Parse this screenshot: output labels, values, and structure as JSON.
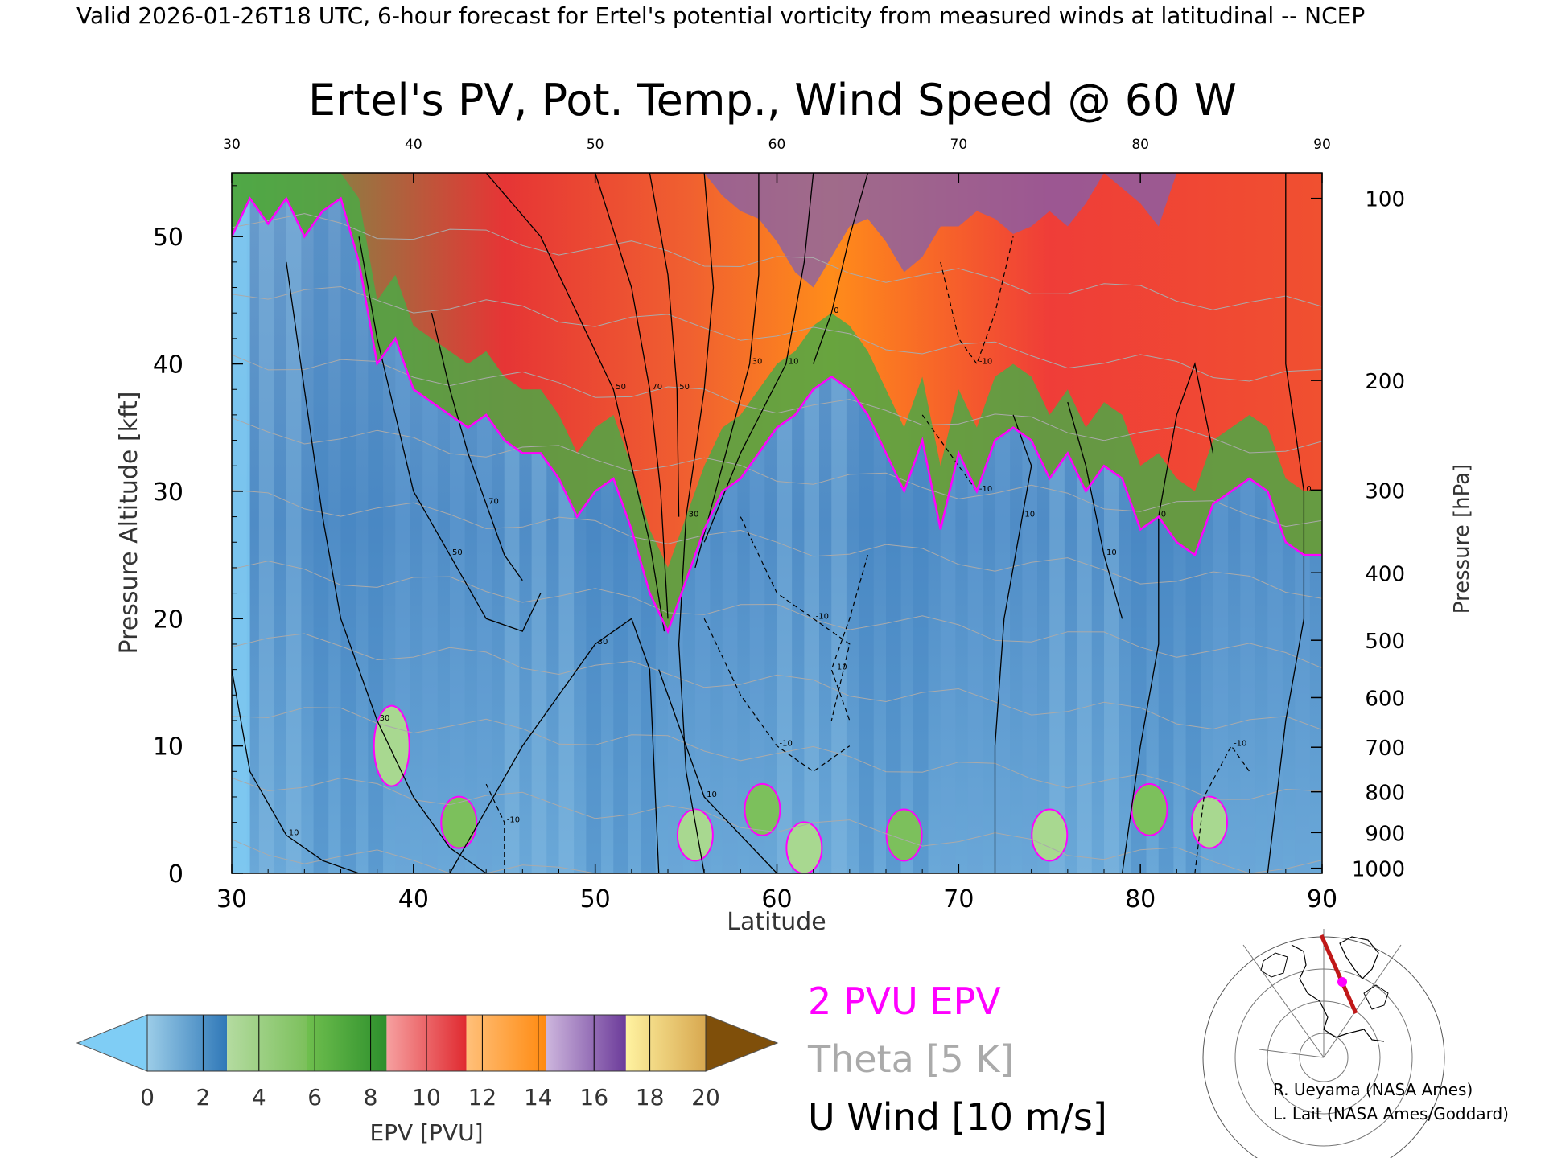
{
  "header": {
    "banner": "Valid 2026-01-26T18 UTC, 6-hour forecast for Ertel's potential vorticity from measured winds at latitudinal -- NCEP",
    "title": "Ertel's PV, Pot. Temp., Wind Speed @ 60 W"
  },
  "legend": {
    "epv_label": "2 PVU EPV",
    "epv_color": "#ff00ff",
    "theta_label": "Theta [5 K]",
    "theta_color": "#aaaaaa",
    "wind_label": "U Wind [10 m/s]",
    "wind_color": "#000000"
  },
  "colorbar": {
    "label": "EPV [PVU]",
    "ticks": [
      "0",
      "2",
      "4",
      "6",
      "8",
      "10",
      "12",
      "14",
      "16",
      "18",
      "20"
    ],
    "under_color": "#7fcdf5",
    "over_color": "#7f4f0a",
    "bins": [
      [
        "#9ccde8",
        "#2f78b8"
      ],
      [
        "#b4dba0",
        "#7cc05c"
      ],
      [
        "#6fbf4e",
        "#2d8f2c"
      ],
      [
        "#f6a0a0",
        "#e02a30"
      ],
      [
        "#ffc07a",
        "#ff8a10"
      ],
      [
        "#cdb6dd",
        "#6c3b9a"
      ],
      [
        "#fff2a0",
        "#d8a850"
      ]
    ]
  },
  "credits": [
    "R. Ueyama (NASA Ames)",
    "L. Lait (NASA Ames/Goddard)"
  ],
  "chart_data": {
    "type": "heatmap",
    "title": "Ertel's PV, Pot. Temp., Wind Speed @ 60 W",
    "xlabel": "Latitude",
    "ylabel": "Pressure Altitude [kft]",
    "y2label": "Pressure [hPa]",
    "xlim": [
      30,
      90
    ],
    "ylim": [
      0,
      55
    ],
    "x_ticks": [
      "30",
      "40",
      "50",
      "60",
      "70",
      "80",
      "90"
    ],
    "y_ticks": [
      "0",
      "10",
      "20",
      "30",
      "40",
      "50"
    ],
    "pressure_ticks": [
      {
        "label": "100",
        "kft": 53.0
      },
      {
        "label": "200",
        "kft": 38.7
      },
      {
        "label": "300",
        "kft": 30.1
      },
      {
        "label": "400",
        "kft": 23.6
      },
      {
        "label": "500",
        "kft": 18.3
      },
      {
        "label": "600",
        "kft": 13.8
      },
      {
        "label": "700",
        "kft": 9.9
      },
      {
        "label": "800",
        "kft": 6.4
      },
      {
        "label": "900",
        "kft": 3.2
      },
      {
        "label": "1000",
        "kft": 0.4
      }
    ],
    "tropopause_2pvu": [
      [
        30,
        50
      ],
      [
        31,
        53
      ],
      [
        32,
        51
      ],
      [
        33,
        53
      ],
      [
        34,
        50
      ],
      [
        35,
        52
      ],
      [
        36,
        53
      ],
      [
        37,
        48
      ],
      [
        38,
        40
      ],
      [
        39,
        42
      ],
      [
        40,
        38
      ],
      [
        41,
        37
      ],
      [
        42,
        36
      ],
      [
        43,
        35
      ],
      [
        44,
        36
      ],
      [
        45,
        34
      ],
      [
        46,
        33
      ],
      [
        47,
        33
      ],
      [
        48,
        31
      ],
      [
        49,
        28
      ],
      [
        50,
        30
      ],
      [
        51,
        31
      ],
      [
        52,
        27
      ],
      [
        53,
        22
      ],
      [
        54,
        19
      ],
      [
        55,
        23
      ],
      [
        56,
        27
      ],
      [
        57,
        30
      ],
      [
        58,
        31
      ],
      [
        59,
        33
      ],
      [
        60,
        35
      ],
      [
        61,
        36
      ],
      [
        62,
        38
      ],
      [
        63,
        39
      ],
      [
        64,
        38
      ],
      [
        65,
        36
      ],
      [
        66,
        33
      ],
      [
        67,
        30
      ],
      [
        68,
        34
      ],
      [
        69,
        27
      ],
      [
        70,
        33
      ],
      [
        71,
        30
      ],
      [
        72,
        34
      ],
      [
        73,
        35
      ],
      [
        74,
        34
      ],
      [
        75,
        31
      ],
      [
        76,
        33
      ],
      [
        77,
        30
      ],
      [
        78,
        32
      ],
      [
        79,
        31
      ],
      [
        80,
        27
      ],
      [
        81,
        28
      ],
      [
        82,
        26
      ],
      [
        83,
        25
      ],
      [
        84,
        29
      ],
      [
        85,
        30
      ],
      [
        86,
        31
      ],
      [
        87,
        30
      ],
      [
        88,
        26
      ],
      [
        89,
        25
      ],
      [
        90,
        25
      ]
    ],
    "stratosphere_pv": [
      [
        30,
        1.5
      ],
      [
        31,
        1.5
      ],
      [
        32,
        1.5
      ],
      [
        33,
        1.5
      ],
      [
        34,
        1.5
      ],
      [
        35,
        1.5
      ],
      [
        36,
        1.5
      ],
      [
        37,
        1.5
      ],
      [
        38,
        2.5
      ],
      [
        39,
        3.0
      ],
      [
        40,
        3.5
      ],
      [
        41,
        5.0
      ],
      [
        42,
        6.0
      ],
      [
        43,
        6.5
      ],
      [
        44,
        8.5
      ],
      [
        45,
        8.5
      ],
      [
        46,
        8.0
      ],
      [
        47,
        8.5
      ],
      [
        48,
        10.0
      ],
      [
        49,
        12.0
      ],
      [
        50,
        10.5
      ],
      [
        51,
        12.0
      ],
      [
        52,
        12.0
      ],
      [
        53,
        9.0
      ],
      [
        54,
        11.5
      ],
      [
        55,
        12.5
      ],
      [
        56,
        12.5
      ],
      [
        57,
        14.5
      ],
      [
        58,
        15.5
      ],
      [
        59,
        16.0
      ],
      [
        60,
        17.5
      ],
      [
        61,
        19.5
      ],
      [
        62,
        20.5
      ],
      [
        63,
        18.5
      ],
      [
        64,
        16.5
      ],
      [
        65,
        16.0
      ],
      [
        66,
        17.5
      ],
      [
        67,
        19.5
      ],
      [
        68,
        18.5
      ],
      [
        69,
        16.5
      ],
      [
        70,
        16.5
      ],
      [
        71,
        15.5
      ],
      [
        72,
        16.0
      ],
      [
        73,
        17.0
      ],
      [
        74,
        16.5
      ],
      [
        75,
        15.5
      ],
      [
        76,
        16.5
      ],
      [
        77,
        15.0
      ],
      [
        78,
        13.0
      ],
      [
        79,
        14.0
      ],
      [
        80,
        15.0
      ],
      [
        81,
        16.5
      ],
      [
        82,
        12.5
      ],
      [
        83,
        12.0
      ],
      [
        84,
        12.0
      ],
      [
        85,
        12.0
      ],
      [
        86,
        12.5
      ],
      [
        87,
        12.0
      ],
      [
        88,
        11.5
      ],
      [
        89,
        11.0
      ],
      [
        90,
        11.0
      ]
    ],
    "low_pv_anomalies": [
      {
        "lat": 38.8,
        "kft": 10,
        "pv": 3
      },
      {
        "lat": 42.5,
        "kft": 4,
        "pv": 4
      },
      {
        "lat": 55.5,
        "kft": 3,
        "pv": 3
      },
      {
        "lat": 59.2,
        "kft": 5,
        "pv": 4
      },
      {
        "lat": 61.5,
        "kft": 2,
        "pv": 3
      },
      {
        "lat": 67.0,
        "kft": 3,
        "pv": 4
      },
      {
        "lat": 75.0,
        "kft": 3,
        "pv": 3
      },
      {
        "lat": 80.5,
        "kft": 5,
        "pv": 4
      },
      {
        "lat": 83.8,
        "kft": 4,
        "pv": 3
      }
    ],
    "wind_contours": [
      {
        "label": "10",
        "points": [
          [
            30,
            16
          ],
          [
            31,
            8
          ],
          [
            33,
            3
          ],
          [
            35,
            1
          ],
          [
            37,
            0
          ]
        ]
      },
      {
        "label": "30",
        "points": [
          [
            33,
            48
          ],
          [
            34,
            38
          ],
          [
            35,
            28
          ],
          [
            36,
            20
          ],
          [
            38,
            12
          ],
          [
            40,
            6
          ],
          [
            42,
            2
          ],
          [
            44,
            0
          ]
        ]
      },
      {
        "label": "50",
        "points": [
          [
            37,
            50
          ],
          [
            38,
            42
          ],
          [
            39,
            36
          ],
          [
            40,
            30
          ],
          [
            42,
            25
          ],
          [
            44,
            20
          ],
          [
            46,
            19
          ],
          [
            47,
            22
          ]
        ]
      },
      {
        "label": "70",
        "points": [
          [
            41,
            44
          ],
          [
            42,
            38
          ],
          [
            43,
            33
          ],
          [
            44,
            29
          ],
          [
            45,
            25
          ],
          [
            46,
            23
          ]
        ]
      },
      {
        "label": "30",
        "points": [
          [
            42,
            0
          ],
          [
            44,
            5
          ],
          [
            46,
            10
          ],
          [
            48,
            14
          ],
          [
            50,
            18
          ],
          [
            52,
            20
          ],
          [
            53,
            16
          ],
          [
            53.5,
            0
          ]
        ]
      },
      {
        "label": "50",
        "points": [
          [
            44,
            55
          ],
          [
            47,
            50
          ],
          [
            49,
            44
          ],
          [
            51,
            38
          ],
          [
            52,
            32
          ],
          [
            53,
            26
          ],
          [
            53.8,
            19
          ]
        ]
      },
      {
        "label": "70",
        "points": [
          [
            50,
            55
          ],
          [
            52,
            46
          ],
          [
            53,
            38
          ],
          [
            53.6,
            30
          ],
          [
            54,
            20
          ]
        ]
      },
      {
        "label": "50",
        "points": [
          [
            53,
            55
          ],
          [
            54,
            47
          ],
          [
            54.5,
            38
          ],
          [
            54.6,
            28
          ]
        ]
      },
      {
        "label": "30",
        "points": [
          [
            56,
            55
          ],
          [
            56.5,
            46
          ],
          [
            56,
            38
          ],
          [
            55,
            28
          ],
          [
            54.6,
            18
          ],
          [
            55,
            8
          ],
          [
            56,
            0
          ]
        ]
      },
      {
        "label": "30",
        "points": [
          [
            59,
            55
          ],
          [
            59,
            47
          ],
          [
            58.5,
            40
          ],
          [
            57,
            32
          ],
          [
            55.5,
            24
          ]
        ]
      },
      {
        "label": "10",
        "points": [
          [
            62,
            55
          ],
          [
            61.5,
            48
          ],
          [
            60.5,
            40
          ],
          [
            58,
            33
          ],
          [
            56,
            26
          ]
        ]
      },
      {
        "label": "10",
        "points": [
          [
            53.5,
            16
          ],
          [
            55,
            10
          ],
          [
            56,
            6
          ],
          [
            58,
            3
          ],
          [
            60,
            0
          ]
        ]
      },
      {
        "label": "0",
        "points": [
          [
            65,
            55
          ],
          [
            64,
            50
          ],
          [
            63,
            44
          ],
          [
            62,
            40
          ]
        ]
      },
      {
        "label": "10",
        "points": [
          [
            72,
            0
          ],
          [
            72,
            10
          ],
          [
            72.5,
            20
          ],
          [
            73.5,
            28
          ],
          [
            74,
            32
          ],
          [
            73,
            36
          ]
        ]
      },
      {
        "label": "10",
        "points": [
          [
            76,
            37
          ],
          [
            77,
            32
          ],
          [
            78,
            25
          ],
          [
            79,
            20
          ]
        ]
      },
      {
        "label": "0",
        "points": [
          [
            79,
            0
          ],
          [
            80,
            10
          ],
          [
            81,
            18
          ],
          [
            81,
            28
          ],
          [
            82,
            36
          ],
          [
            83,
            40
          ],
          [
            84,
            33
          ]
        ]
      },
      {
        "label": "0",
        "points": [
          [
            87,
            0
          ],
          [
            88,
            12
          ],
          [
            89,
            20
          ],
          [
            89,
            30
          ],
          [
            88,
            40
          ],
          [
            88,
            55
          ]
        ]
      }
    ],
    "wind_contours_negative": [
      {
        "label": "-10",
        "points": [
          [
            56,
            20
          ],
          [
            58,
            14
          ],
          [
            60,
            10
          ],
          [
            62,
            8
          ],
          [
            64,
            10
          ]
        ]
      },
      {
        "label": "-10",
        "points": [
          [
            58,
            28
          ],
          [
            60,
            22
          ],
          [
            62,
            20
          ],
          [
            64,
            18
          ],
          [
            63,
            12
          ]
        ]
      },
      {
        "label": "-10",
        "points": [
          [
            65,
            25
          ],
          [
            64,
            20
          ],
          [
            63,
            16
          ],
          [
            64,
            12
          ]
        ]
      },
      {
        "label": "-10",
        "points": [
          [
            69,
            48
          ],
          [
            70,
            42
          ],
          [
            71,
            40
          ],
          [
            72,
            44
          ],
          [
            73,
            50
          ]
        ]
      },
      {
        "label": "-10",
        "points": [
          [
            68,
            36
          ],
          [
            70,
            32
          ],
          [
            71,
            30
          ],
          [
            72,
            34
          ]
        ]
      },
      {
        "label": "-10",
        "points": [
          [
            45,
            0
          ],
          [
            45,
            4
          ],
          [
            44,
            7
          ]
        ]
      },
      {
        "label": "-10",
        "points": [
          [
            83,
            0
          ],
          [
            83.5,
            6
          ],
          [
            85,
            10
          ],
          [
            86,
            8
          ]
        ]
      }
    ],
    "theta_levels_k": [
      260,
      280,
      300,
      320,
      340,
      360,
      380,
      400,
      420,
      440
    ],
    "grid": false,
    "legend_position": "bottom"
  }
}
